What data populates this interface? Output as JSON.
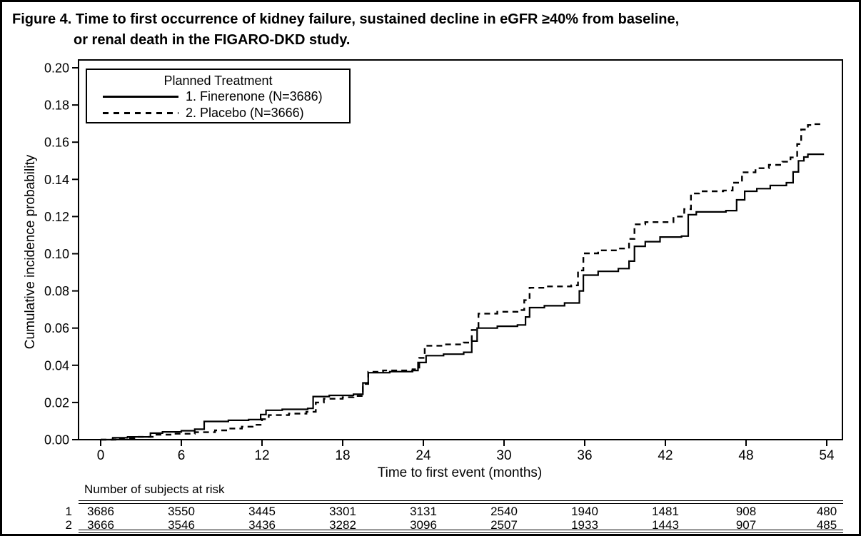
{
  "figure": {
    "title_line1": "Figure 4. Time to first occurrence of kidney failure, sustained decline in eGFR ≥40% from baseline,",
    "title_line2": "or renal death in the FIGARO-DKD study."
  },
  "legend": {
    "title": "Planned Treatment",
    "items": [
      {
        "label": "1. Finerenone (N=3686)",
        "line_style": "solid"
      },
      {
        "label": "2. Placebo (N=3666)",
        "line_style": "dashed"
      }
    ]
  },
  "chart_data": {
    "type": "line",
    "subtype": "cumulative-incidence-step",
    "title": "Figure 4. Time to first occurrence of kidney failure, sustained decline in eGFR ≥40% from baseline, or renal death in the FIGARO-DKD study.",
    "xlabel": "Time to first event (months)",
    "ylabel": "Cumulative incidence probability",
    "xlim": [
      0,
      54
    ],
    "ylim": [
      0.0,
      0.2
    ],
    "xticks": [
      0,
      6,
      12,
      18,
      24,
      30,
      36,
      42,
      48,
      54
    ],
    "ytick_labels": [
      "0.00",
      "0.02",
      "0.04",
      "0.06",
      "0.08",
      "0.10",
      "0.12",
      "0.14",
      "0.16",
      "0.18",
      "0.20"
    ],
    "grid": false,
    "legend_position": "top-left-inside",
    "line_color": "#000000",
    "series": [
      {
        "name": "1. Finerenone (N=3686)",
        "style": "solid",
        "points": [
          [
            0,
            0
          ],
          [
            0.9,
            0.001
          ],
          [
            2,
            0.0015
          ],
          [
            3.7,
            0.0035
          ],
          [
            4.6,
            0.0042
          ],
          [
            6,
            0.0048
          ],
          [
            7,
            0.0056
          ],
          [
            7.7,
            0.0098
          ],
          [
            9.5,
            0.0104
          ],
          [
            11,
            0.0108
          ],
          [
            11.9,
            0.0135
          ],
          [
            12.3,
            0.0158
          ],
          [
            13.5,
            0.0163
          ],
          [
            15.4,
            0.0168
          ],
          [
            15.8,
            0.0232
          ],
          [
            17,
            0.0238
          ],
          [
            18.8,
            0.0244
          ],
          [
            19.5,
            0.0305
          ],
          [
            19.9,
            0.036
          ],
          [
            21.5,
            0.0366
          ],
          [
            23.2,
            0.0372
          ],
          [
            23.6,
            0.0415
          ],
          [
            24.2,
            0.0452
          ],
          [
            25.5,
            0.046
          ],
          [
            27,
            0.047
          ],
          [
            27.6,
            0.053
          ],
          [
            28,
            0.06
          ],
          [
            29.5,
            0.061
          ],
          [
            31,
            0.0617
          ],
          [
            31.6,
            0.066
          ],
          [
            31.9,
            0.071
          ],
          [
            33,
            0.072
          ],
          [
            34.5,
            0.0735
          ],
          [
            35.6,
            0.08
          ],
          [
            35.9,
            0.0885
          ],
          [
            37,
            0.0905
          ],
          [
            38.5,
            0.092
          ],
          [
            39.3,
            0.096
          ],
          [
            39.7,
            0.104
          ],
          [
            40.5,
            0.1065
          ],
          [
            41.6,
            0.109
          ],
          [
            43.2,
            0.1095
          ],
          [
            43.7,
            0.121
          ],
          [
            44.3,
            0.1225
          ],
          [
            46.5,
            0.1232
          ],
          [
            47.3,
            0.129
          ],
          [
            47.9,
            0.1336
          ],
          [
            48.8,
            0.135
          ],
          [
            49.8,
            0.1367
          ],
          [
            51,
            0.1382
          ],
          [
            51.5,
            0.144
          ],
          [
            51.9,
            0.15
          ],
          [
            52.3,
            0.152
          ],
          [
            52.6,
            0.1535
          ],
          [
            53.8,
            0.1535
          ]
        ]
      },
      {
        "name": "2. Placebo (N=3666)",
        "style": "dashed",
        "points": [
          [
            0,
            0
          ],
          [
            1.2,
            0.0008
          ],
          [
            2.5,
            0.0015
          ],
          [
            4,
            0.0027
          ],
          [
            5.5,
            0.0032
          ],
          [
            7,
            0.004
          ],
          [
            8.5,
            0.005
          ],
          [
            9.5,
            0.006
          ],
          [
            10.5,
            0.007
          ],
          [
            11.3,
            0.008
          ],
          [
            12,
            0.011
          ],
          [
            12.5,
            0.0132
          ],
          [
            14,
            0.014
          ],
          [
            15.3,
            0.015
          ],
          [
            16,
            0.02
          ],
          [
            16.6,
            0.022
          ],
          [
            18,
            0.0228
          ],
          [
            18.8,
            0.0235
          ],
          [
            19.5,
            0.03
          ],
          [
            19.9,
            0.0365
          ],
          [
            21,
            0.0372
          ],
          [
            23.2,
            0.0378
          ],
          [
            23.7,
            0.044
          ],
          [
            24.1,
            0.0505
          ],
          [
            25.5,
            0.0512
          ],
          [
            27,
            0.0522
          ],
          [
            27.6,
            0.059
          ],
          [
            28.1,
            0.0678
          ],
          [
            29.5,
            0.0688
          ],
          [
            31,
            0.0697
          ],
          [
            31.5,
            0.075
          ],
          [
            31.9,
            0.0817
          ],
          [
            33,
            0.0824
          ],
          [
            35,
            0.083
          ],
          [
            35.5,
            0.091
          ],
          [
            35.9,
            0.1002
          ],
          [
            37,
            0.1018
          ],
          [
            38.5,
            0.1028
          ],
          [
            39.3,
            0.108
          ],
          [
            39.7,
            0.1158
          ],
          [
            40.5,
            0.117
          ],
          [
            42.6,
            0.12
          ],
          [
            43.4,
            0.124
          ],
          [
            43.9,
            0.1324
          ],
          [
            44.5,
            0.1336
          ],
          [
            46.3,
            0.134
          ],
          [
            47,
            0.1382
          ],
          [
            47.7,
            0.1438
          ],
          [
            48.7,
            0.146
          ],
          [
            49.7,
            0.1478
          ],
          [
            50.7,
            0.1495
          ],
          [
            51.3,
            0.1518
          ],
          [
            51.8,
            0.159
          ],
          [
            52.1,
            0.1668
          ],
          [
            52.6,
            0.1692
          ],
          [
            53,
            0.1697
          ],
          [
            53.8,
            0.1697
          ]
        ]
      }
    ]
  },
  "risk_table": {
    "caption": "Number of subjects at risk",
    "timepoints": [
      0,
      6,
      12,
      18,
      24,
      30,
      36,
      42,
      48,
      54
    ],
    "rows": [
      {
        "label": "1",
        "values": [
          "3686",
          "3550",
          "3445",
          "3301",
          "3131",
          "2540",
          "1940",
          "1481",
          "908",
          "480"
        ]
      },
      {
        "label": "2",
        "values": [
          "3666",
          "3546",
          "3436",
          "3282",
          "3096",
          "2507",
          "1933",
          "1443",
          "907",
          "485"
        ]
      }
    ]
  },
  "colors": {
    "foreground": "#000000",
    "background": "#ffffff"
  }
}
